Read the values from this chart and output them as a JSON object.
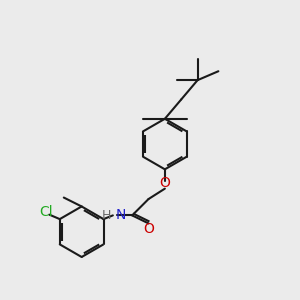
{
  "bg_color": "#ebebeb",
  "bond_color": "#1a1a1a",
  "o_color": "#cc0000",
  "n_color": "#2222cc",
  "cl_color": "#22aa22",
  "h_color": "#666666",
  "font_size": 10,
  "label_font": 9,
  "line_width": 1.5,
  "figsize": [
    3.0,
    3.0
  ],
  "dpi": 100,
  "xlim": [
    0,
    10
  ],
  "ylim": [
    0,
    10
  ]
}
